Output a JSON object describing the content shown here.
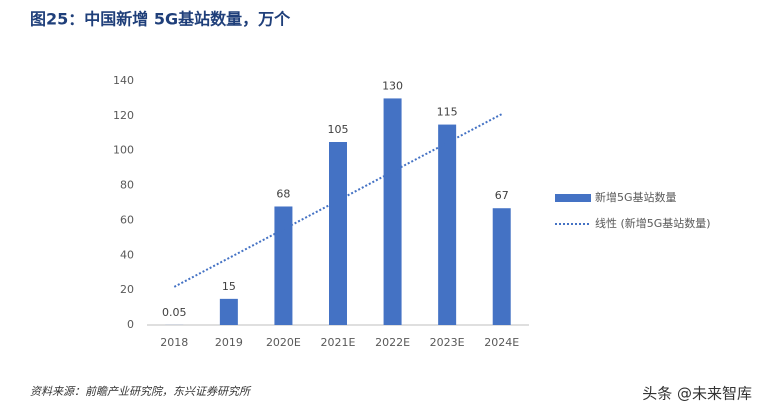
{
  "chart_data": {
    "type": "bar",
    "title": "图25：中国新增 5G基站数量，万个",
    "categories": [
      "2018",
      "2019",
      "2020E",
      "2021E",
      "2022E",
      "2023E",
      "2024E"
    ],
    "series": [
      {
        "name": "新增5G基站数量",
        "type": "bar",
        "color": "#4472c4",
        "values": [
          0.05,
          15,
          68,
          105,
          130,
          115,
          67
        ]
      },
      {
        "name": "线性 (新增5G基站数量)",
        "type": "line",
        "color": "#4472c4",
        "dotted": true,
        "values": [
          21.9,
          38.4,
          54.9,
          71.4,
          88.0,
          104.5,
          121.0
        ]
      }
    ],
    "ylim": [
      0,
      140
    ],
    "yticks": [
      0,
      20,
      40,
      60,
      80,
      100,
      120,
      140
    ],
    "grid": false,
    "legend": "right",
    "source": "资料来源：前瞻产业研究院，东兴证券研究所",
    "watermark": "头条 @未来智库"
  }
}
